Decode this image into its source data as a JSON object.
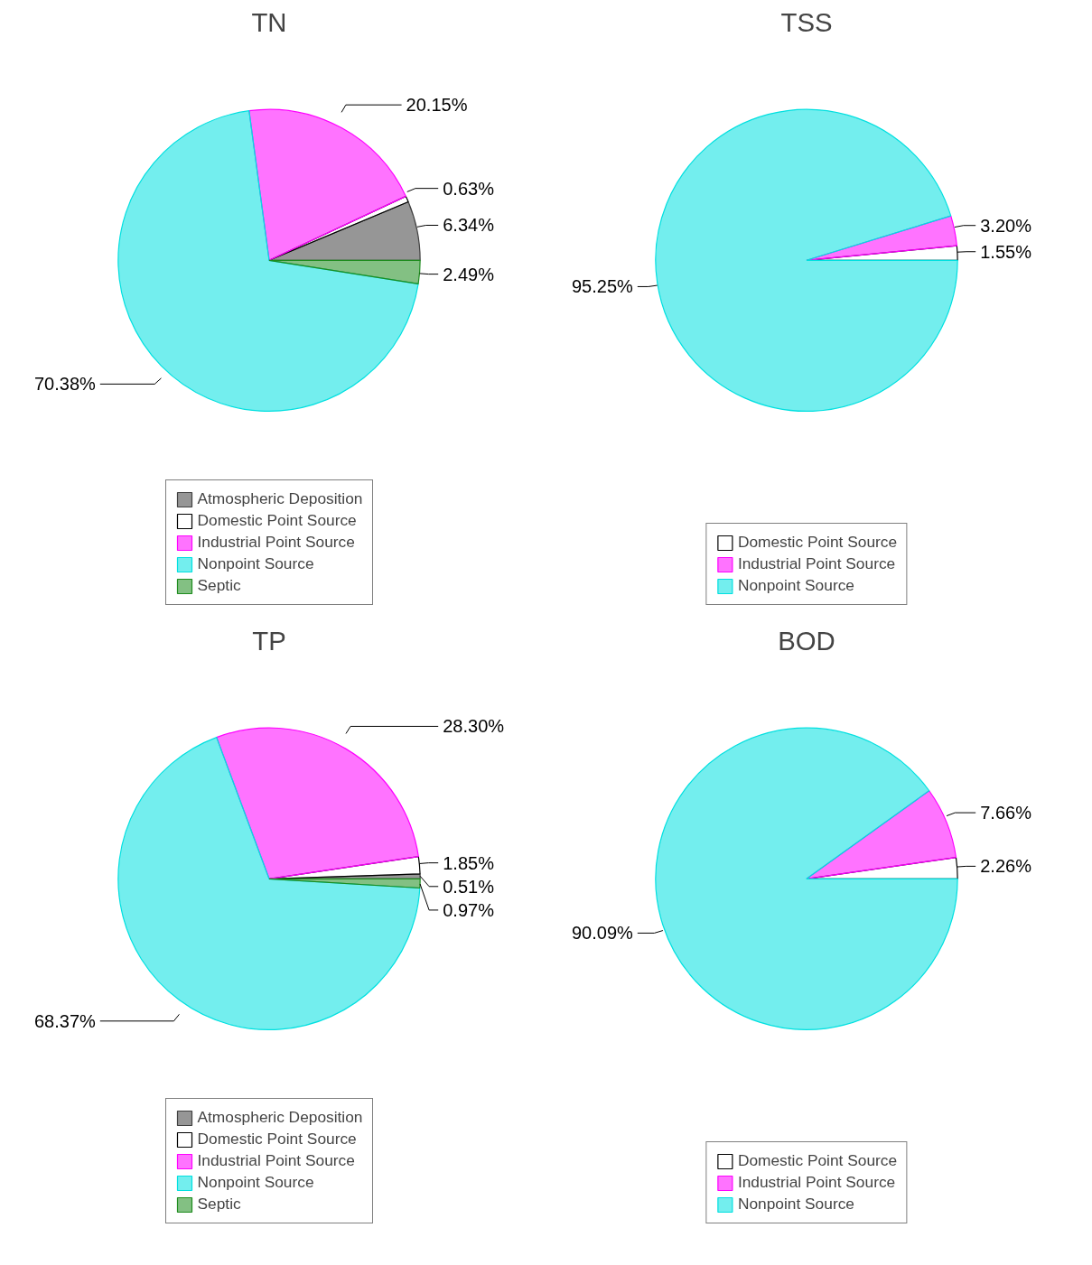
{
  "chart_data": [
    {
      "type": "pie",
      "title": "TN",
      "categories": [
        "Atmospheric Deposition",
        "Domestic Point Source",
        "Industrial Point Source",
        "Nonpoint Source",
        "Septic"
      ],
      "values": [
        6.34,
        0.63,
        20.15,
        70.38,
        2.49
      ],
      "value_labels": [
        "6.34%",
        "0.63%",
        "20.15%",
        "70.38%",
        "2.49%"
      ],
      "colors": [
        "#404040",
        "#ffffff",
        "#ff00ff",
        "#00e0e0",
        "#1e8c1e"
      ],
      "legend": "bottom"
    },
    {
      "type": "pie",
      "title": "TSS",
      "categories": [
        "Domestic Point Source",
        "Industrial Point Source",
        "Nonpoint Source"
      ],
      "values": [
        1.55,
        3.2,
        95.25
      ],
      "value_labels": [
        "1.55%",
        "3.20%",
        "95.25%"
      ],
      "colors": [
        "#ffffff",
        "#ff00ff",
        "#00e0e0"
      ],
      "legend": "bottom"
    },
    {
      "type": "pie",
      "title": "TP",
      "categories": [
        "Atmospheric Deposition",
        "Domestic Point Source",
        "Industrial Point Source",
        "Nonpoint Source",
        "Septic"
      ],
      "values": [
        0.51,
        1.85,
        28.3,
        68.37,
        0.97
      ],
      "value_labels": [
        "0.51%",
        "1.85%",
        "28.30%",
        "68.37%",
        "0.97%"
      ],
      "colors": [
        "#404040",
        "#ffffff",
        "#ff00ff",
        "#00e0e0",
        "#1e8c1e"
      ],
      "legend": "bottom"
    },
    {
      "type": "pie",
      "title": "BOD",
      "categories": [
        "Domestic Point Source",
        "Industrial Point Source",
        "Nonpoint Source"
      ],
      "values": [
        2.26,
        7.66,
        90.09
      ],
      "value_labels": [
        "2.26%",
        "7.66%",
        "90.09%"
      ],
      "colors": [
        "#ffffff",
        "#ff00ff",
        "#00e0e0"
      ],
      "legend": "bottom"
    }
  ]
}
